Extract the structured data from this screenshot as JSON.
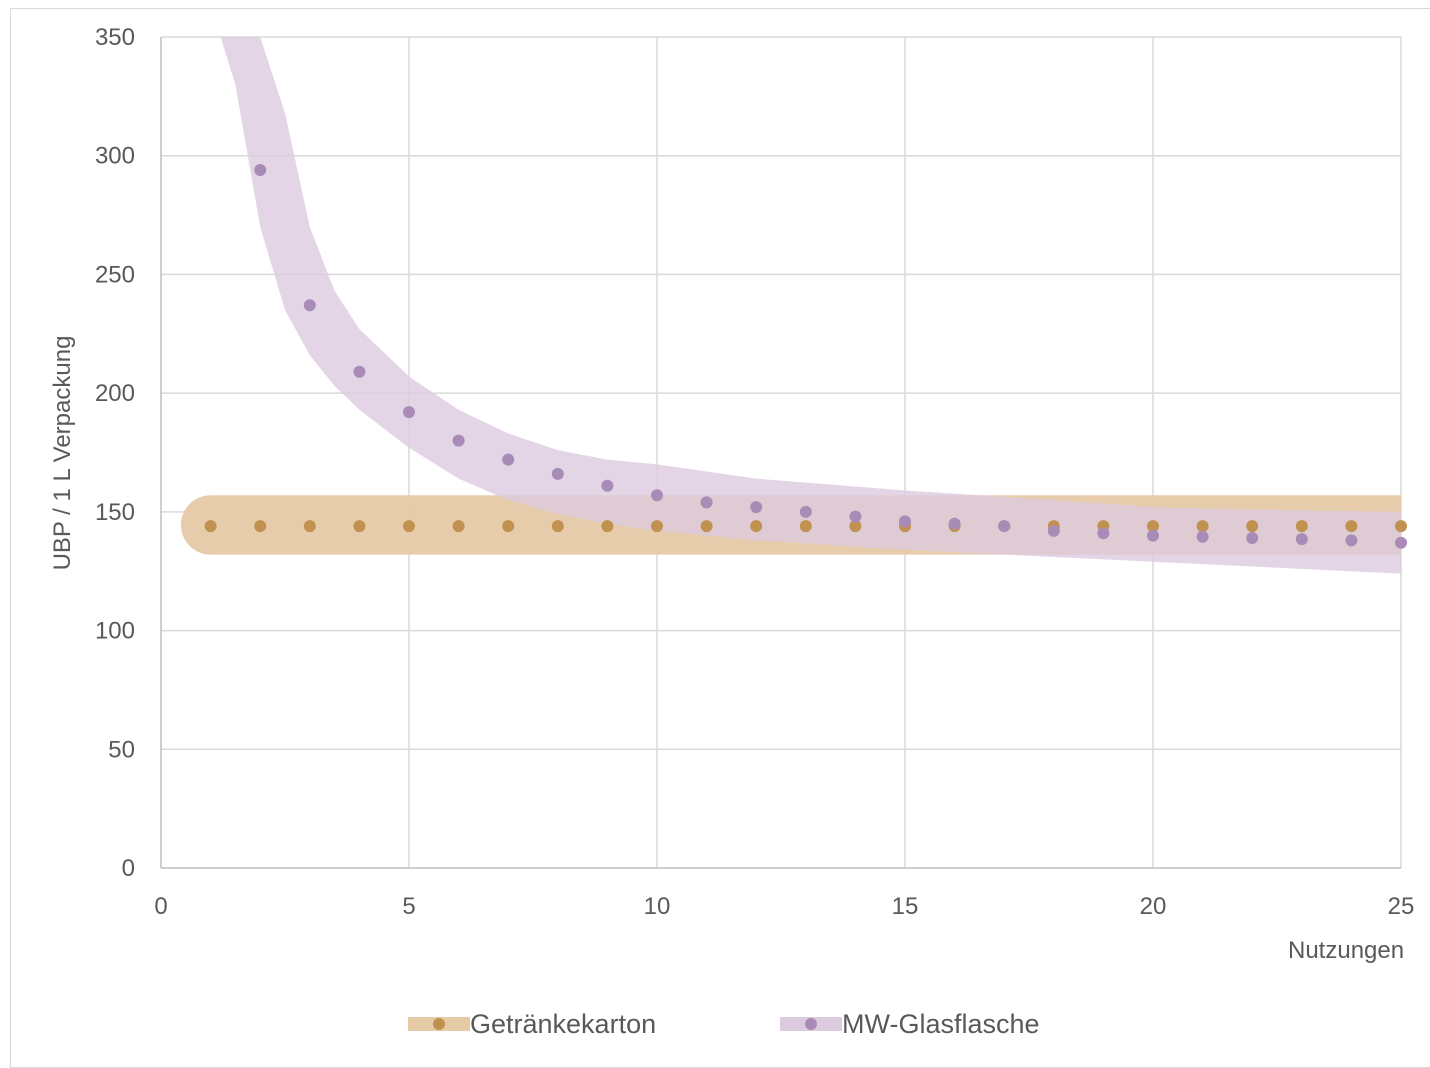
{
  "chart_data": {
    "type": "scatter",
    "title": "",
    "xlabel": "Nutzungen",
    "ylabel": "UBP / 1 L Verpackung",
    "xlim": [
      0,
      25
    ],
    "ylim": [
      0,
      350
    ],
    "xticks": [
      0,
      5,
      10,
      15,
      20,
      25
    ],
    "yticks": [
      0,
      50,
      100,
      150,
      200,
      250,
      300,
      350
    ],
    "grid": true,
    "legend_position": "bottom",
    "series": [
      {
        "name": "Getränkekarton",
        "color": "#c0914f",
        "band_color": "#e6c9a6",
        "x": [
          1,
          2,
          3,
          4,
          5,
          6,
          7,
          8,
          9,
          10,
          11,
          12,
          13,
          14,
          15,
          16,
          17,
          18,
          19,
          20,
          21,
          22,
          23,
          24,
          25
        ],
        "y": [
          144,
          144,
          144,
          144,
          144,
          144,
          144,
          144,
          144,
          144,
          144,
          144,
          144,
          144,
          144,
          144,
          144,
          144,
          144,
          144,
          144,
          144,
          144,
          144,
          144
        ],
        "band": {
          "x": [
            1,
            25
          ],
          "lower": [
            132,
            132
          ],
          "upper": [
            157,
            157
          ]
        }
      },
      {
        "name": "MW-Glasflasche",
        "color": "#a98bb7",
        "band_color": "#dccbdf",
        "x": [
          1,
          2,
          3,
          4,
          5,
          6,
          7,
          8,
          9,
          10,
          11,
          12,
          13,
          14,
          15,
          16,
          17,
          18,
          19,
          20,
          21,
          22,
          23,
          24,
          25
        ],
        "y": [
          null,
          294,
          237,
          209,
          192,
          180,
          172,
          166,
          161,
          157,
          154,
          152,
          150,
          148,
          146,
          145,
          144,
          142,
          141,
          140,
          139.5,
          139,
          138.5,
          138,
          137
        ],
        "band": {
          "x": [
            1.2,
            1.5,
            2,
            2.5,
            3,
            3.5,
            4,
            5,
            6,
            7,
            8,
            9,
            10,
            12,
            15,
            18,
            20,
            22,
            25
          ],
          "lower": [
            350,
            330,
            270,
            235,
            216,
            203,
            193,
            177,
            164,
            155,
            149,
            145,
            142,
            138,
            134,
            131,
            129,
            127,
            124
          ],
          "upper": [
            350,
            350,
            350,
            318,
            270,
            243,
            227,
            207,
            193,
            183,
            176,
            172,
            170,
            164,
            159,
            155,
            152,
            151,
            150
          ]
        }
      }
    ]
  }
}
